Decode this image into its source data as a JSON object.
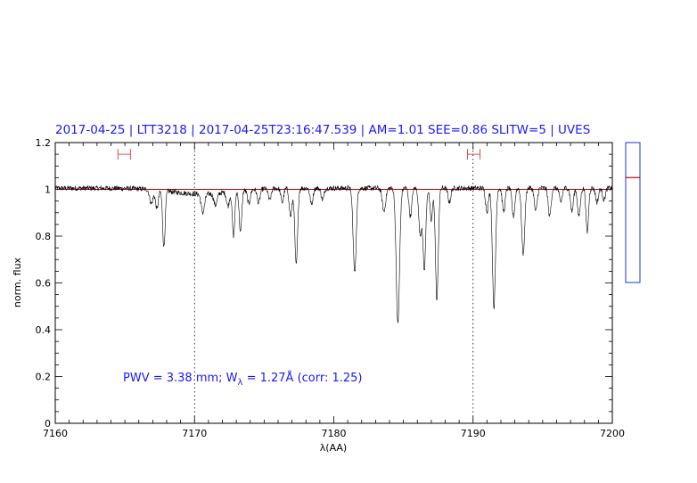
{
  "chart_data": {
    "type": "line",
    "title": "2017-04-25 | LTT3218 | 2017-04-25T23:16:47.539 | AM=1.01 SEE=0.86 SLITW=5 | UVES",
    "xlabel": "λ(AA)",
    "ylabel": "norm. flux",
    "xlim": [
      7160,
      7200
    ],
    "ylim": [
      0,
      1.2
    ],
    "x_ticks": [
      "7160",
      "7170",
      "7180",
      "7190",
      "7200"
    ],
    "y_ticks": [
      "0",
      "0.2",
      "0.4",
      "0.6",
      "0.8",
      "1",
      "1.2"
    ],
    "continuum_level": 1.0,
    "continuum_color": "#cc0000",
    "spectrum_color": "#000000",
    "annotation": {
      "prefix": "PWV = 3.38 mm; W",
      "subscript": "λ",
      "suffix": " = 1.27Å (corr: 1.25)"
    },
    "reference_lines_x": [
      7170,
      7190
    ],
    "red_markers": [
      {
        "x_start": 7164.5,
        "x_end": 7165.4,
        "y": 1.15
      },
      {
        "x_start": 7189.6,
        "x_end": 7190.5,
        "y": 1.15
      }
    ],
    "side_gauge": {
      "min": 0.6,
      "max": 1.2,
      "level": 1.05
    },
    "absorption_lines": [
      {
        "x": 7166.9,
        "depth": 0.06,
        "width": 0.12
      },
      {
        "x": 7167.8,
        "depth": 0.24,
        "width": 0.09
      },
      {
        "x": 7167.3,
        "depth": 0.08,
        "width": 0.1
      },
      {
        "x": 7170.6,
        "depth": 0.08,
        "width": 0.12
      },
      {
        "x": 7171.5,
        "depth": 0.05,
        "width": 0.12
      },
      {
        "x": 7172.4,
        "depth": 0.06,
        "width": 0.1
      },
      {
        "x": 7172.8,
        "depth": 0.19,
        "width": 0.09
      },
      {
        "x": 7173.3,
        "depth": 0.18,
        "width": 0.09
      },
      {
        "x": 7173.9,
        "depth": 0.06,
        "width": 0.1
      },
      {
        "x": 7174.6,
        "depth": 0.06,
        "width": 0.1
      },
      {
        "x": 7175.4,
        "depth": 0.05,
        "width": 0.1
      },
      {
        "x": 7176.3,
        "depth": 0.06,
        "width": 0.1
      },
      {
        "x": 7176.9,
        "depth": 0.12,
        "width": 0.1
      },
      {
        "x": 7177.3,
        "depth": 0.33,
        "width": 0.1
      },
      {
        "x": 7178.4,
        "depth": 0.07,
        "width": 0.1
      },
      {
        "x": 7179.2,
        "depth": 0.05,
        "width": 0.1
      },
      {
        "x": 7181.5,
        "depth": 0.36,
        "width": 0.11
      },
      {
        "x": 7183.6,
        "depth": 0.1,
        "width": 0.12
      },
      {
        "x": 7184.6,
        "depth": 0.58,
        "width": 0.12
      },
      {
        "x": 7185.5,
        "depth": 0.12,
        "width": 0.1
      },
      {
        "x": 7186.2,
        "depth": 0.2,
        "width": 0.1
      },
      {
        "x": 7186.5,
        "depth": 0.35,
        "width": 0.1
      },
      {
        "x": 7187.0,
        "depth": 0.14,
        "width": 0.09
      },
      {
        "x": 7187.4,
        "depth": 0.48,
        "width": 0.1
      },
      {
        "x": 7188.3,
        "depth": 0.06,
        "width": 0.1
      },
      {
        "x": 7191.0,
        "depth": 0.1,
        "width": 0.1
      },
      {
        "x": 7191.5,
        "depth": 0.51,
        "width": 0.11
      },
      {
        "x": 7192.2,
        "depth": 0.1,
        "width": 0.1
      },
      {
        "x": 7192.9,
        "depth": 0.12,
        "width": 0.1
      },
      {
        "x": 7193.6,
        "depth": 0.28,
        "width": 0.11
      },
      {
        "x": 7194.5,
        "depth": 0.1,
        "width": 0.1
      },
      {
        "x": 7195.5,
        "depth": 0.12,
        "width": 0.1
      },
      {
        "x": 7196.3,
        "depth": 0.06,
        "width": 0.1
      },
      {
        "x": 7197.1,
        "depth": 0.1,
        "width": 0.1
      },
      {
        "x": 7197.6,
        "depth": 0.12,
        "width": 0.1
      },
      {
        "x": 7198.2,
        "depth": 0.19,
        "width": 0.09
      },
      {
        "x": 7198.9,
        "depth": 0.06,
        "width": 0.1
      },
      {
        "x": 7199.4,
        "depth": 0.05,
        "width": 0.1
      }
    ]
  }
}
